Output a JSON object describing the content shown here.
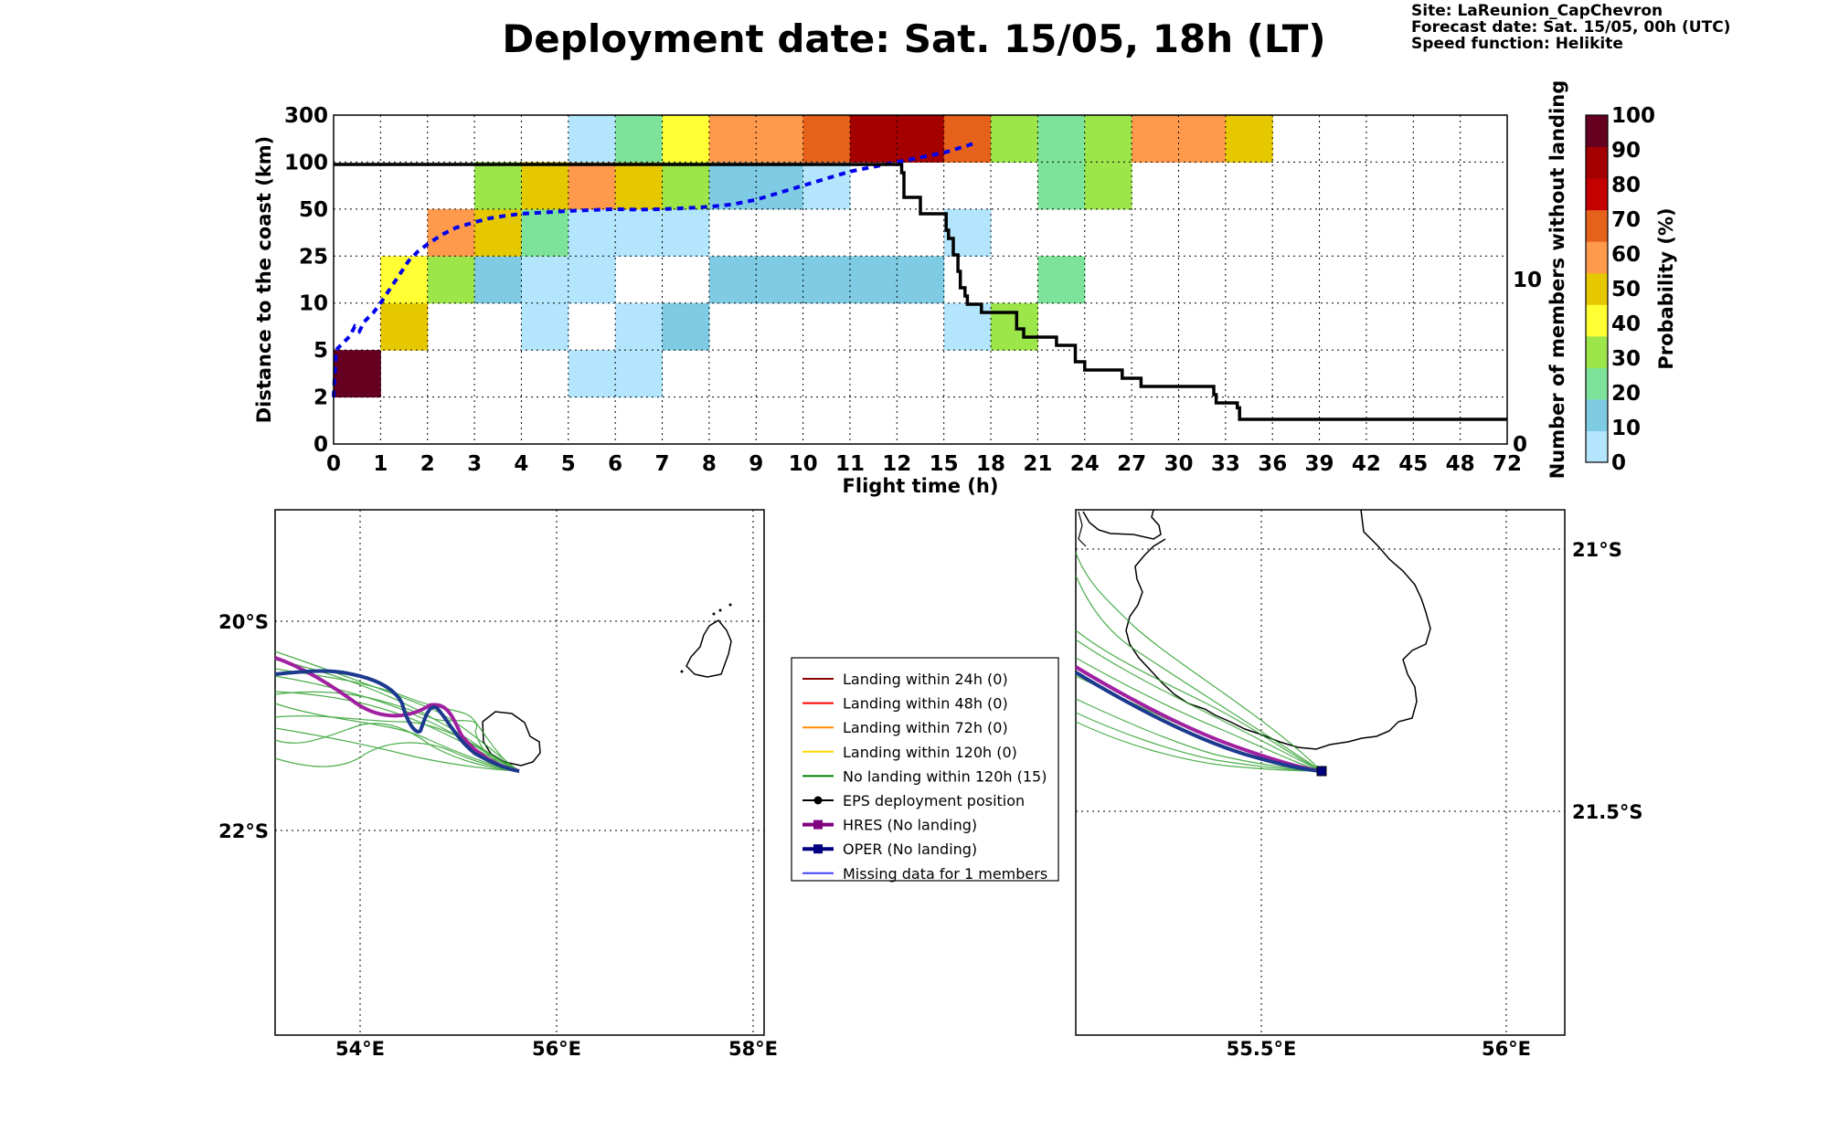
{
  "header": {
    "title": "Deployment date: Sat. 15/05, 18h (LT)",
    "site": "Site: LaReunion_CapChevron",
    "forecast": "Forecast date: Sat. 15/05, 00h (UTC)",
    "speed": "Speed function: Helikite"
  },
  "chart_data": [
    {
      "type": "heatmap",
      "xlabel": "Flight time (h)",
      "ylabel": "Distance to the coast (km)",
      "y2label": "Number of members without landing",
      "x_ticks": [
        "0",
        "1",
        "2",
        "3",
        "4",
        "5",
        "6",
        "7",
        "8",
        "9",
        "10",
        "11",
        "12",
        "15",
        "18",
        "21",
        "24",
        "27",
        "30",
        "33",
        "36",
        "39",
        "42",
        "45",
        "48",
        "72"
      ],
      "y_ticks": [
        "0",
        "2",
        "5",
        "10",
        "25",
        "50",
        "100",
        "300"
      ],
      "y2_ticks": [
        "0",
        "10"
      ],
      "y2_range": [
        0,
        20
      ],
      "colorbar": {
        "label": "Probability (%)",
        "ticks": [
          "0",
          "10",
          "20",
          "30",
          "40",
          "50",
          "60",
          "70",
          "80",
          "90",
          "100"
        ],
        "colors": [
          "#b3e5fc",
          "#7ecbe3",
          "#7ee39a",
          "#9ce64a",
          "#ffff33",
          "#e6c800",
          "#ff9a4d",
          "#e6621a",
          "#c40000",
          "#a50000",
          "#650020"
        ]
      },
      "grid": true,
      "cells": [
        {
          "x": 0,
          "y": 1,
          "p": 100
        },
        {
          "x": 1,
          "y": 2,
          "p": 50
        },
        {
          "x": 1,
          "y": 3,
          "p": 40
        },
        {
          "x": 2,
          "y": 3,
          "p": 30
        },
        {
          "x": 2,
          "y": 4,
          "p": 60
        },
        {
          "x": 3,
          "y": 3,
          "p": 10
        },
        {
          "x": 3,
          "y": 4,
          "p": 50
        },
        {
          "x": 3,
          "y": 5,
          "p": 30
        },
        {
          "x": 4,
          "y": 2,
          "p": 0
        },
        {
          "x": 4,
          "y": 3,
          "p": 0
        },
        {
          "x": 4,
          "y": 4,
          "p": 20
        },
        {
          "x": 4,
          "y": 5,
          "p": 50
        },
        {
          "x": 5,
          "y": 1,
          "p": 0
        },
        {
          "x": 5,
          "y": 3,
          "p": 0
        },
        {
          "x": 5,
          "y": 4,
          "p": 0
        },
        {
          "x": 5,
          "y": 5,
          "p": 60
        },
        {
          "x": 5,
          "y": 6,
          "p": 0
        },
        {
          "x": 6,
          "y": 1,
          "p": 0
        },
        {
          "x": 6,
          "y": 2,
          "p": 0
        },
        {
          "x": 6,
          "y": 4,
          "p": 0
        },
        {
          "x": 6,
          "y": 5,
          "p": 50
        },
        {
          "x": 6,
          "y": 6,
          "p": 20
        },
        {
          "x": 7,
          "y": 2,
          "p": 10
        },
        {
          "x": 7,
          "y": 4,
          "p": 0
        },
        {
          "x": 7,
          "y": 5,
          "p": 30
        },
        {
          "x": 7,
          "y": 6,
          "p": 40
        },
        {
          "x": 8,
          "y": 3,
          "p": 10
        },
        {
          "x": 8,
          "y": 5,
          "p": 10
        },
        {
          "x": 8,
          "y": 6,
          "p": 60
        },
        {
          "x": 9,
          "y": 3,
          "p": 10
        },
        {
          "x": 9,
          "y": 5,
          "p": 10
        },
        {
          "x": 9,
          "y": 6,
          "p": 60
        },
        {
          "x": 10,
          "y": 3,
          "p": 10
        },
        {
          "x": 10,
          "y": 5,
          "p": 0
        },
        {
          "x": 10,
          "y": 6,
          "p": 70
        },
        {
          "x": 11,
          "y": 3,
          "p": 10
        },
        {
          "x": 11,
          "y": 6,
          "p": 90
        },
        {
          "x": 12,
          "y": 3,
          "p": 10
        },
        {
          "x": 12,
          "y": 6,
          "p": 90
        },
        {
          "x": 13,
          "y": 2,
          "p": 0
        },
        {
          "x": 13,
          "y": 4,
          "p": 0
        },
        {
          "x": 13,
          "y": 6,
          "p": 70
        },
        {
          "x": 14,
          "y": 2,
          "p": 30
        },
        {
          "x": 14,
          "y": 6,
          "p": 30
        },
        {
          "x": 15,
          "y": 3,
          "p": 20
        },
        {
          "x": 15,
          "y": 5,
          "p": 20
        },
        {
          "x": 15,
          "y": 6,
          "p": 20
        },
        {
          "x": 16,
          "y": 5,
          "p": 30
        },
        {
          "x": 16,
          "y": 6,
          "p": 30
        },
        {
          "x": 17,
          "y": 6,
          "p": 60
        },
        {
          "x": 18,
          "y": 6,
          "p": 60
        },
        {
          "x": 19,
          "y": 6,
          "p": 50
        }
      ],
      "series": [
        {
          "style": "dashed",
          "color": "#0000ee",
          "x": [
            0,
            0.05,
            0.15,
            0.25,
            0.35,
            0.45,
            0.55,
            0.65,
            0.75,
            0.85,
            1,
            1.2,
            1.4,
            1.6,
            1.8,
            2,
            2.3,
            2.6,
            3,
            3.3,
            3.6,
            4,
            4.5,
            5,
            5.5,
            6,
            6.5,
            7,
            7.5,
            8,
            8.5,
            9,
            9.5,
            10,
            10.5,
            11,
            11.5,
            12,
            12.5,
            13,
            13.5,
            13.7
          ],
          "y": [
            1.0,
            2.0,
            2.1,
            2.2,
            2.3,
            2.5,
            2.4,
            2.6,
            2.7,
            2.8,
            3.0,
            3.3,
            3.6,
            3.9,
            4.1,
            4.25,
            4.45,
            4.6,
            4.72,
            4.8,
            4.85,
            4.9,
            4.93,
            4.96,
            4.98,
            5.0,
            4.99,
            5.0,
            5.02,
            5.05,
            5.1,
            5.2,
            5.35,
            5.5,
            5.65,
            5.8,
            5.9,
            6.0,
            6.1,
            6.2,
            6.35,
            6.42
          ]
        },
        {
          "name_axis": "right",
          "color": "#000000",
          "x": [
            0,
            12.1,
            12.1,
            12.15,
            12.15,
            12.5,
            12.5,
            13.05,
            13.05,
            13.1,
            13.1,
            13.2,
            13.2,
            13.3,
            13.3,
            13.35,
            13.35,
            13.45,
            13.45,
            13.5,
            13.5,
            13.8,
            13.8,
            14.55,
            14.55,
            14.7,
            14.7,
            15.4,
            15.4,
            15.8,
            15.8,
            16,
            16,
            16.8,
            16.8,
            17.2,
            17.2,
            18.75,
            18.75,
            18.8,
            18.8,
            19.25,
            19.25,
            19.3,
            19.3,
            25
          ],
          "y": [
            17,
            17,
            16.5,
            16.5,
            15,
            15,
            14,
            14,
            13,
            13,
            12.5,
            12.5,
            11.5,
            11.5,
            10.5,
            10.5,
            9.5,
            9.5,
            9,
            9,
            8.5,
            8.5,
            8,
            8,
            7,
            7,
            6.5,
            6.5,
            6,
            6,
            5,
            5,
            4.5,
            4.5,
            4,
            4,
            3.5,
            3.5,
            3,
            3,
            2.5,
            2.5,
            2.2,
            2.2,
            1.5,
            1.5
          ]
        }
      ]
    }
  ],
  "map_left": {
    "lon_ticks": [
      "54°E",
      "56°E",
      "58°E"
    ],
    "lat_ticks": [
      "20°S",
      "22°S"
    ]
  },
  "map_right": {
    "lon_ticks": [
      "55.5°E",
      "56°E"
    ],
    "lat_ticks": [
      "21°S",
      "21.5°S"
    ]
  },
  "legend": {
    "items": [
      {
        "label": "Landing within 24h (0)",
        "color": "#8b0000",
        "marker": ""
      },
      {
        "label": "Landing within 48h (0)",
        "color": "#ff0000",
        "marker": ""
      },
      {
        "label": "Landing within 72h (0)",
        "color": "#ff8c00",
        "marker": ""
      },
      {
        "label": "Landing within 120h (0)",
        "color": "#ffd700",
        "marker": ""
      },
      {
        "label": "No landing within 120h (15)",
        "color": "#008000",
        "marker": ""
      },
      {
        "label": "EPS deployment position",
        "color": "#000000",
        "marker": "circle"
      },
      {
        "label": "HRES (No landing)",
        "color": "#800080",
        "marker": "square"
      },
      {
        "label": "OPER (No landing)",
        "color": "#000080",
        "marker": "square"
      },
      {
        "label": "Missing data for 1 members",
        "color": "#4040ff",
        "marker": ""
      }
    ]
  }
}
